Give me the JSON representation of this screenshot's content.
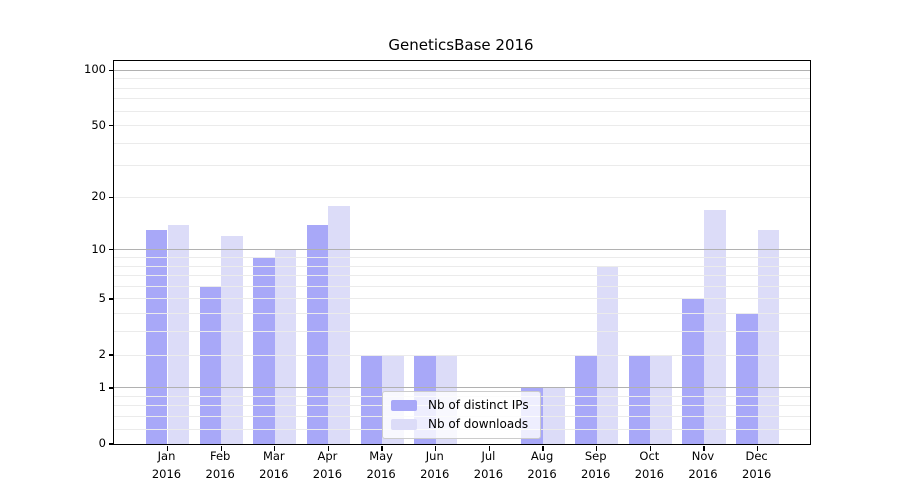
{
  "chart_data": {
    "type": "bar",
    "title": "GeneticsBase 2016",
    "categories": [
      "Jan",
      "Feb",
      "Mar",
      "Apr",
      "May",
      "Jun",
      "Jul",
      "Aug",
      "Sep",
      "Oct",
      "Nov",
      "Dec"
    ],
    "category_sublabel": "2016",
    "series": [
      {
        "key": "ips",
        "name": "Nb of distinct IPs",
        "color": "#a8a8f8",
        "values": [
          13,
          6,
          9,
          14,
          2,
          2,
          0,
          1,
          2,
          2,
          5,
          4
        ]
      },
      {
        "key": "downloads",
        "name": "Nb of downloads",
        "color": "#dcdcf8",
        "values": [
          14,
          12,
          10,
          18,
          2,
          2,
          0,
          1,
          8,
          2,
          17,
          13
        ]
      }
    ],
    "yscale": "log1p (position proportional to log10(value+1))",
    "ylim": [
      0,
      112
    ],
    "yticks": [
      0,
      1,
      2,
      5,
      10,
      20,
      50,
      100
    ],
    "grid_major": [
      1,
      10,
      100
    ],
    "grid_minor": [
      0.2,
      0.4,
      0.6,
      0.8,
      2,
      3,
      4,
      5,
      6,
      7,
      8,
      9,
      20,
      30,
      40,
      50,
      60,
      70,
      80,
      90
    ],
    "grid": "on",
    "legend_position": "lower center"
  },
  "colors": {
    "grid_major": "#b1b1b1",
    "grid_minor": "#ebebeb",
    "spine": "#000000",
    "legend_border": "#cccccc"
  }
}
